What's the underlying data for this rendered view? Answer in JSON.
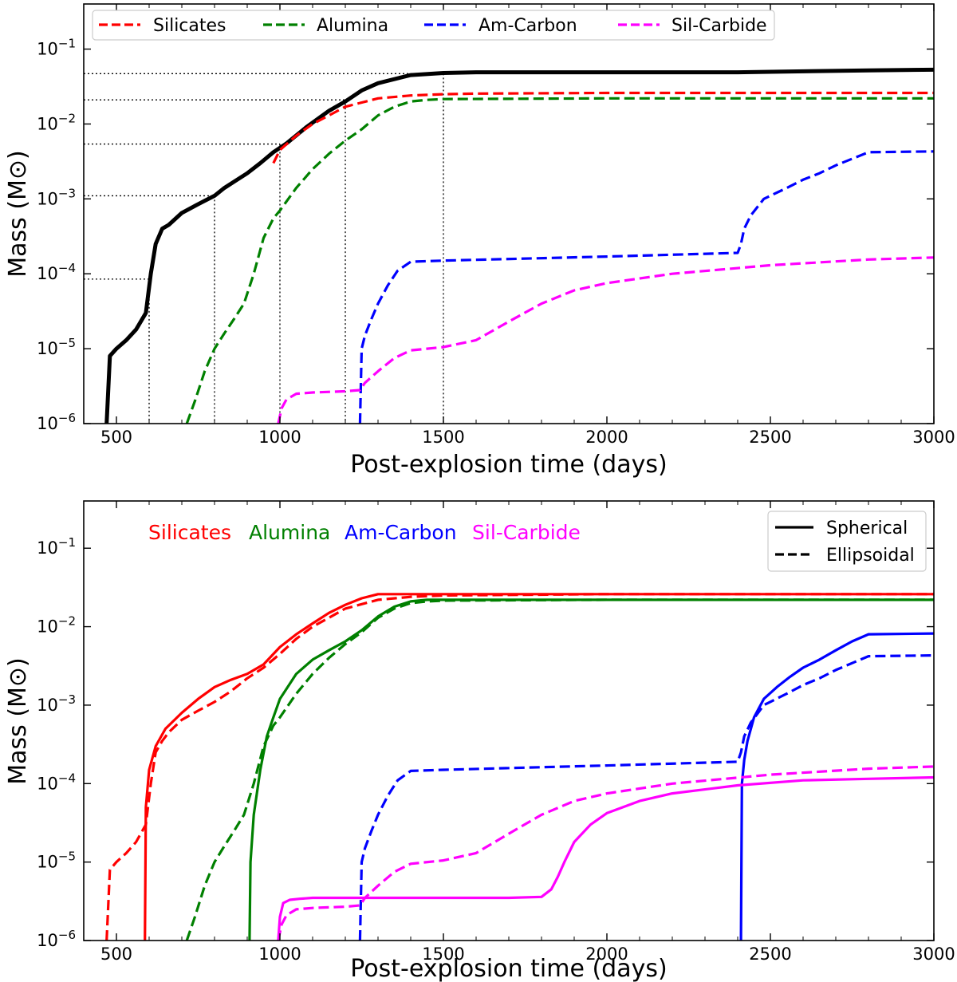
{
  "chart_data": [
    {
      "type": "line",
      "xlabel": "Post-explosion time (days)",
      "ylabel": "Mass (M⊙)",
      "xlim": [
        400,
        3000
      ],
      "ylim": [
        1e-06,
        0.4
      ],
      "yscale": "log",
      "x_ticks": [
        500,
        1000,
        1500,
        2000,
        2500,
        3000
      ],
      "y_ticks": [
        {
          "value": 1e-06,
          "base": "10",
          "exp": "−6"
        },
        {
          "value": 1e-05,
          "base": "10",
          "exp": "−5"
        },
        {
          "value": 0.0001,
          "base": "10",
          "exp": "−4"
        },
        {
          "value": 0.001,
          "base": "10",
          "exp": "−3"
        },
        {
          "value": 0.01,
          "base": "10",
          "exp": "−2"
        },
        {
          "value": 0.1,
          "base": "10",
          "exp": "−1"
        }
      ],
      "legend": {
        "placement": "top",
        "entries": [
          "Silicates",
          "Alumina",
          "Am-Carbon",
          "Sil-Carbide"
        ]
      },
      "series": [
        {
          "color": "#000000",
          "style": "solid",
          "x": [
            470,
            480,
            500,
            530,
            560,
            590,
            605,
            620,
            640,
            660,
            700,
            750,
            800,
            830,
            860,
            900,
            940,
            980,
            1020,
            1080,
            1150,
            1200,
            1250,
            1300,
            1400,
            1500,
            1600,
            2000,
            2400,
            2800,
            3000
          ],
          "y": [
            1e-06,
            8e-06,
            1e-05,
            1.3e-05,
            1.8e-05,
            3e-05,
            0.0001,
            0.00025,
            0.0004,
            0.00045,
            0.00065,
            0.00085,
            0.0011,
            0.0014,
            0.0017,
            0.0022,
            0.003,
            0.0042,
            0.0055,
            0.009,
            0.015,
            0.02,
            0.028,
            0.035,
            0.045,
            0.048,
            0.049,
            0.049,
            0.049,
            0.052,
            0.053
          ]
        },
        {
          "name": "Silicates",
          "color": "#ff0000",
          "style": "dashed",
          "x": [
            980,
            1000,
            1050,
            1100,
            1150,
            1200,
            1300,
            1400,
            1500,
            1600,
            2000,
            2500,
            3000
          ],
          "y": [
            0.003,
            0.0045,
            0.007,
            0.01,
            0.013,
            0.017,
            0.022,
            0.024,
            0.025,
            0.0255,
            0.026,
            0.026,
            0.026
          ]
        },
        {
          "name": "Alumina",
          "color": "#008000",
          "style": "dashed",
          "x": [
            715,
            740,
            770,
            800,
            830,
            860,
            890,
            920,
            950,
            980,
            1000,
            1050,
            1100,
            1150,
            1200,
            1250,
            1300,
            1350,
            1400,
            1450,
            1500,
            2000,
            3000
          ],
          "y": [
            1e-06,
            2e-06,
            5e-06,
            1e-05,
            1.6e-05,
            2.5e-05,
            4e-05,
            0.0001,
            0.0003,
            0.00055,
            0.0007,
            0.0014,
            0.0025,
            0.004,
            0.006,
            0.0085,
            0.013,
            0.017,
            0.02,
            0.021,
            0.0215,
            0.022,
            0.022
          ]
        },
        {
          "name": "Am-Carbon",
          "color": "#0000ff",
          "style": "dashed",
          "x": [
            1245,
            1250,
            1260,
            1280,
            1300,
            1330,
            1360,
            1400,
            1500,
            2000,
            2400,
            2410,
            2420,
            2440,
            2480,
            2550,
            2600,
            2650,
            2700,
            2800,
            3000
          ],
          "y": [
            1e-06,
            1e-05,
            1.5e-05,
            2.5e-05,
            4e-05,
            7e-05,
            0.00011,
            0.000145,
            0.00015,
            0.00017,
            0.00019,
            0.00025,
            0.0004,
            0.0006,
            0.001,
            0.0014,
            0.0018,
            0.0022,
            0.0028,
            0.0042,
            0.0043
          ]
        },
        {
          "name": "Sil-Carbide",
          "color": "#ff00ff",
          "style": "dashed",
          "x": [
            995,
            1005,
            1020,
            1050,
            1100,
            1200,
            1245,
            1260,
            1300,
            1350,
            1400,
            1500,
            1600,
            1700,
            1800,
            1900,
            2000,
            2200,
            2500,
            2800,
            3000
          ],
          "y": [
            1e-06,
            1.6e-06,
            2.1e-06,
            2.5e-06,
            2.6e-06,
            2.7e-06,
            2.8e-06,
            3.5e-06,
            5e-06,
            7.5e-06,
            9.5e-06,
            1.05e-05,
            1.3e-05,
            2.3e-05,
            4e-05,
            6e-05,
            7.5e-05,
            0.0001,
            0.00013,
            0.000155,
            0.000165
          ]
        }
      ],
      "reference_lines": [
        {
          "x": 600,
          "y": 8.5e-05
        },
        {
          "x": 800,
          "y": 0.0011
        },
        {
          "x": 1000,
          "y": 0.0054
        },
        {
          "x": 1200,
          "y": 0.021
        },
        {
          "x": 1500,
          "y": 0.047
        }
      ]
    },
    {
      "type": "line",
      "xlabel": "Post-explosion time (days)",
      "ylabel": "Mass (M⊙)",
      "xlim": [
        400,
        3000
      ],
      "ylim": [
        1e-06,
        0.4
      ],
      "yscale": "log",
      "x_ticks": [
        500,
        1000,
        1500,
        2000,
        2500,
        3000
      ],
      "y_ticks": [
        {
          "value": 1e-06,
          "base": "10",
          "exp": "−6"
        },
        {
          "value": 1e-05,
          "base": "10",
          "exp": "−5"
        },
        {
          "value": 0.0001,
          "base": "10",
          "exp": "−4"
        },
        {
          "value": 0.001,
          "base": "10",
          "exp": "−3"
        },
        {
          "value": 0.01,
          "base": "10",
          "exp": "−2"
        },
        {
          "value": 0.1,
          "base": "10",
          "exp": "−1"
        }
      ],
      "series_labels": [
        {
          "text": "Silicates",
          "color": "#ff0000"
        },
        {
          "text": "Alumina",
          "color": "#008000"
        },
        {
          "text": "Am-Carbon",
          "color": "#0000ff"
        },
        {
          "text": "Sil-Carbide",
          "color": "#ff00ff"
        }
      ],
      "legend": {
        "placement": "top-right",
        "entries": [
          {
            "label": "Spherical",
            "style": "solid"
          },
          {
            "label": "Ellipsoidal",
            "style": "dashed"
          }
        ]
      },
      "series": [
        {
          "material": "Silicates",
          "color": "#ff0000",
          "style": "solid",
          "x": [
            587,
            590,
            600,
            620,
            650,
            700,
            750,
            800,
            850,
            900,
            950,
            1000,
            1050,
            1100,
            1150,
            1200,
            1250,
            1300,
            1400,
            1500,
            2000,
            3000
          ],
          "y": [
            1e-06,
            5e-05,
            0.00015,
            0.0003,
            0.0005,
            0.0008,
            0.0012,
            0.0017,
            0.0021,
            0.0025,
            0.0033,
            0.0055,
            0.008,
            0.011,
            0.015,
            0.019,
            0.023,
            0.026,
            0.026,
            0.026,
            0.026,
            0.026
          ]
        },
        {
          "material": "Silicates",
          "color": "#ff0000",
          "style": "dashed",
          "x": [
            470,
            480,
            500,
            530,
            560,
            590,
            605,
            620,
            640,
            660,
            700,
            750,
            800,
            850,
            900,
            950,
            1000,
            1050,
            1100,
            1150,
            1200,
            1300,
            1400,
            1500,
            2000,
            3000
          ],
          "y": [
            1e-06,
            8e-06,
            1e-05,
            1.3e-05,
            1.8e-05,
            3e-05,
            0.0001,
            0.00025,
            0.00035,
            0.00045,
            0.00065,
            0.00085,
            0.0011,
            0.0015,
            0.0022,
            0.003,
            0.0045,
            0.007,
            0.01,
            0.013,
            0.017,
            0.022,
            0.024,
            0.025,
            0.026,
            0.026
          ]
        },
        {
          "material": "Alumina",
          "color": "#008000",
          "style": "solid",
          "x": [
            907,
            910,
            920,
            940,
            960,
            980,
            1000,
            1050,
            1100,
            1150,
            1200,
            1250,
            1300,
            1350,
            1400,
            1450,
            1500,
            2000,
            3000
          ],
          "y": [
            1e-06,
            1e-05,
            4e-05,
            0.00015,
            0.0004,
            0.0007,
            0.0012,
            0.0025,
            0.0038,
            0.005,
            0.0065,
            0.009,
            0.0135,
            0.018,
            0.021,
            0.022,
            0.022,
            0.022,
            0.022
          ]
        },
        {
          "material": "Alumina",
          "color": "#008000",
          "style": "dashed",
          "x": [
            715,
            740,
            770,
            800,
            830,
            860,
            890,
            920,
            950,
            980,
            1000,
            1050,
            1100,
            1150,
            1200,
            1250,
            1300,
            1350,
            1400,
            1450,
            1500,
            2000,
            3000
          ],
          "y": [
            1e-06,
            2e-06,
            5e-06,
            1e-05,
            1.6e-05,
            2.5e-05,
            4e-05,
            0.0001,
            0.0003,
            0.00055,
            0.0007,
            0.0014,
            0.0025,
            0.004,
            0.006,
            0.0085,
            0.013,
            0.017,
            0.02,
            0.021,
            0.0215,
            0.022,
            0.022
          ]
        },
        {
          "material": "Am-Carbon",
          "color": "#0000ff",
          "style": "solid",
          "x": [
            2410,
            2413,
            2420,
            2430,
            2450,
            2480,
            2520,
            2560,
            2600,
            2650,
            2700,
            2750,
            2800,
            3000
          ],
          "y": [
            1e-06,
            0.0001,
            0.0002,
            0.00035,
            0.0007,
            0.0012,
            0.0017,
            0.0023,
            0.003,
            0.0038,
            0.005,
            0.0065,
            0.008,
            0.0082
          ]
        },
        {
          "material": "Am-Carbon",
          "color": "#0000ff",
          "style": "dashed",
          "x": [
            1245,
            1250,
            1260,
            1280,
            1300,
            1330,
            1360,
            1400,
            1500,
            2000,
            2400,
            2410,
            2420,
            2440,
            2480,
            2550,
            2600,
            2650,
            2700,
            2800,
            3000
          ],
          "y": [
            1e-06,
            1e-05,
            1.5e-05,
            2.5e-05,
            4e-05,
            7e-05,
            0.00011,
            0.000145,
            0.00015,
            0.00017,
            0.00019,
            0.00025,
            0.0004,
            0.0006,
            0.001,
            0.0014,
            0.0018,
            0.0022,
            0.0028,
            0.0042,
            0.0043
          ]
        },
        {
          "material": "Sil-Carbide",
          "color": "#ff00ff",
          "style": "solid",
          "x": [
            995,
            1000,
            1010,
            1030,
            1060,
            1100,
            1200,
            1400,
            1700,
            1800,
            1830,
            1850,
            1870,
            1900,
            1950,
            2000,
            2100,
            2200,
            2400,
            2600,
            2800,
            3000
          ],
          "y": [
            1e-06,
            2e-06,
            3e-06,
            3.3e-06,
            3.4e-06,
            3.5e-06,
            3.5e-06,
            3.5e-06,
            3.5e-06,
            3.6e-06,
            4.5e-06,
            6.5e-06,
            1e-05,
            1.8e-05,
            3e-05,
            4.2e-05,
            6e-05,
            7.5e-05,
            9.5e-05,
            0.00011,
            0.000115,
            0.00012
          ]
        },
        {
          "material": "Sil-Carbide",
          "color": "#ff00ff",
          "style": "dashed",
          "x": [
            995,
            1005,
            1020,
            1050,
            1100,
            1200,
            1245,
            1260,
            1300,
            1350,
            1400,
            1500,
            1600,
            1700,
            1800,
            1900,
            2000,
            2200,
            2500,
            2800,
            3000
          ],
          "y": [
            1e-06,
            1.6e-06,
            2.1e-06,
            2.5e-06,
            2.6e-06,
            2.7e-06,
            2.8e-06,
            3.5e-06,
            5e-06,
            7.5e-06,
            9.5e-06,
            1.05e-05,
            1.3e-05,
            2.3e-05,
            4e-05,
            6e-05,
            7.5e-05,
            0.0001,
            0.00013,
            0.000155,
            0.000165
          ]
        }
      ]
    }
  ]
}
